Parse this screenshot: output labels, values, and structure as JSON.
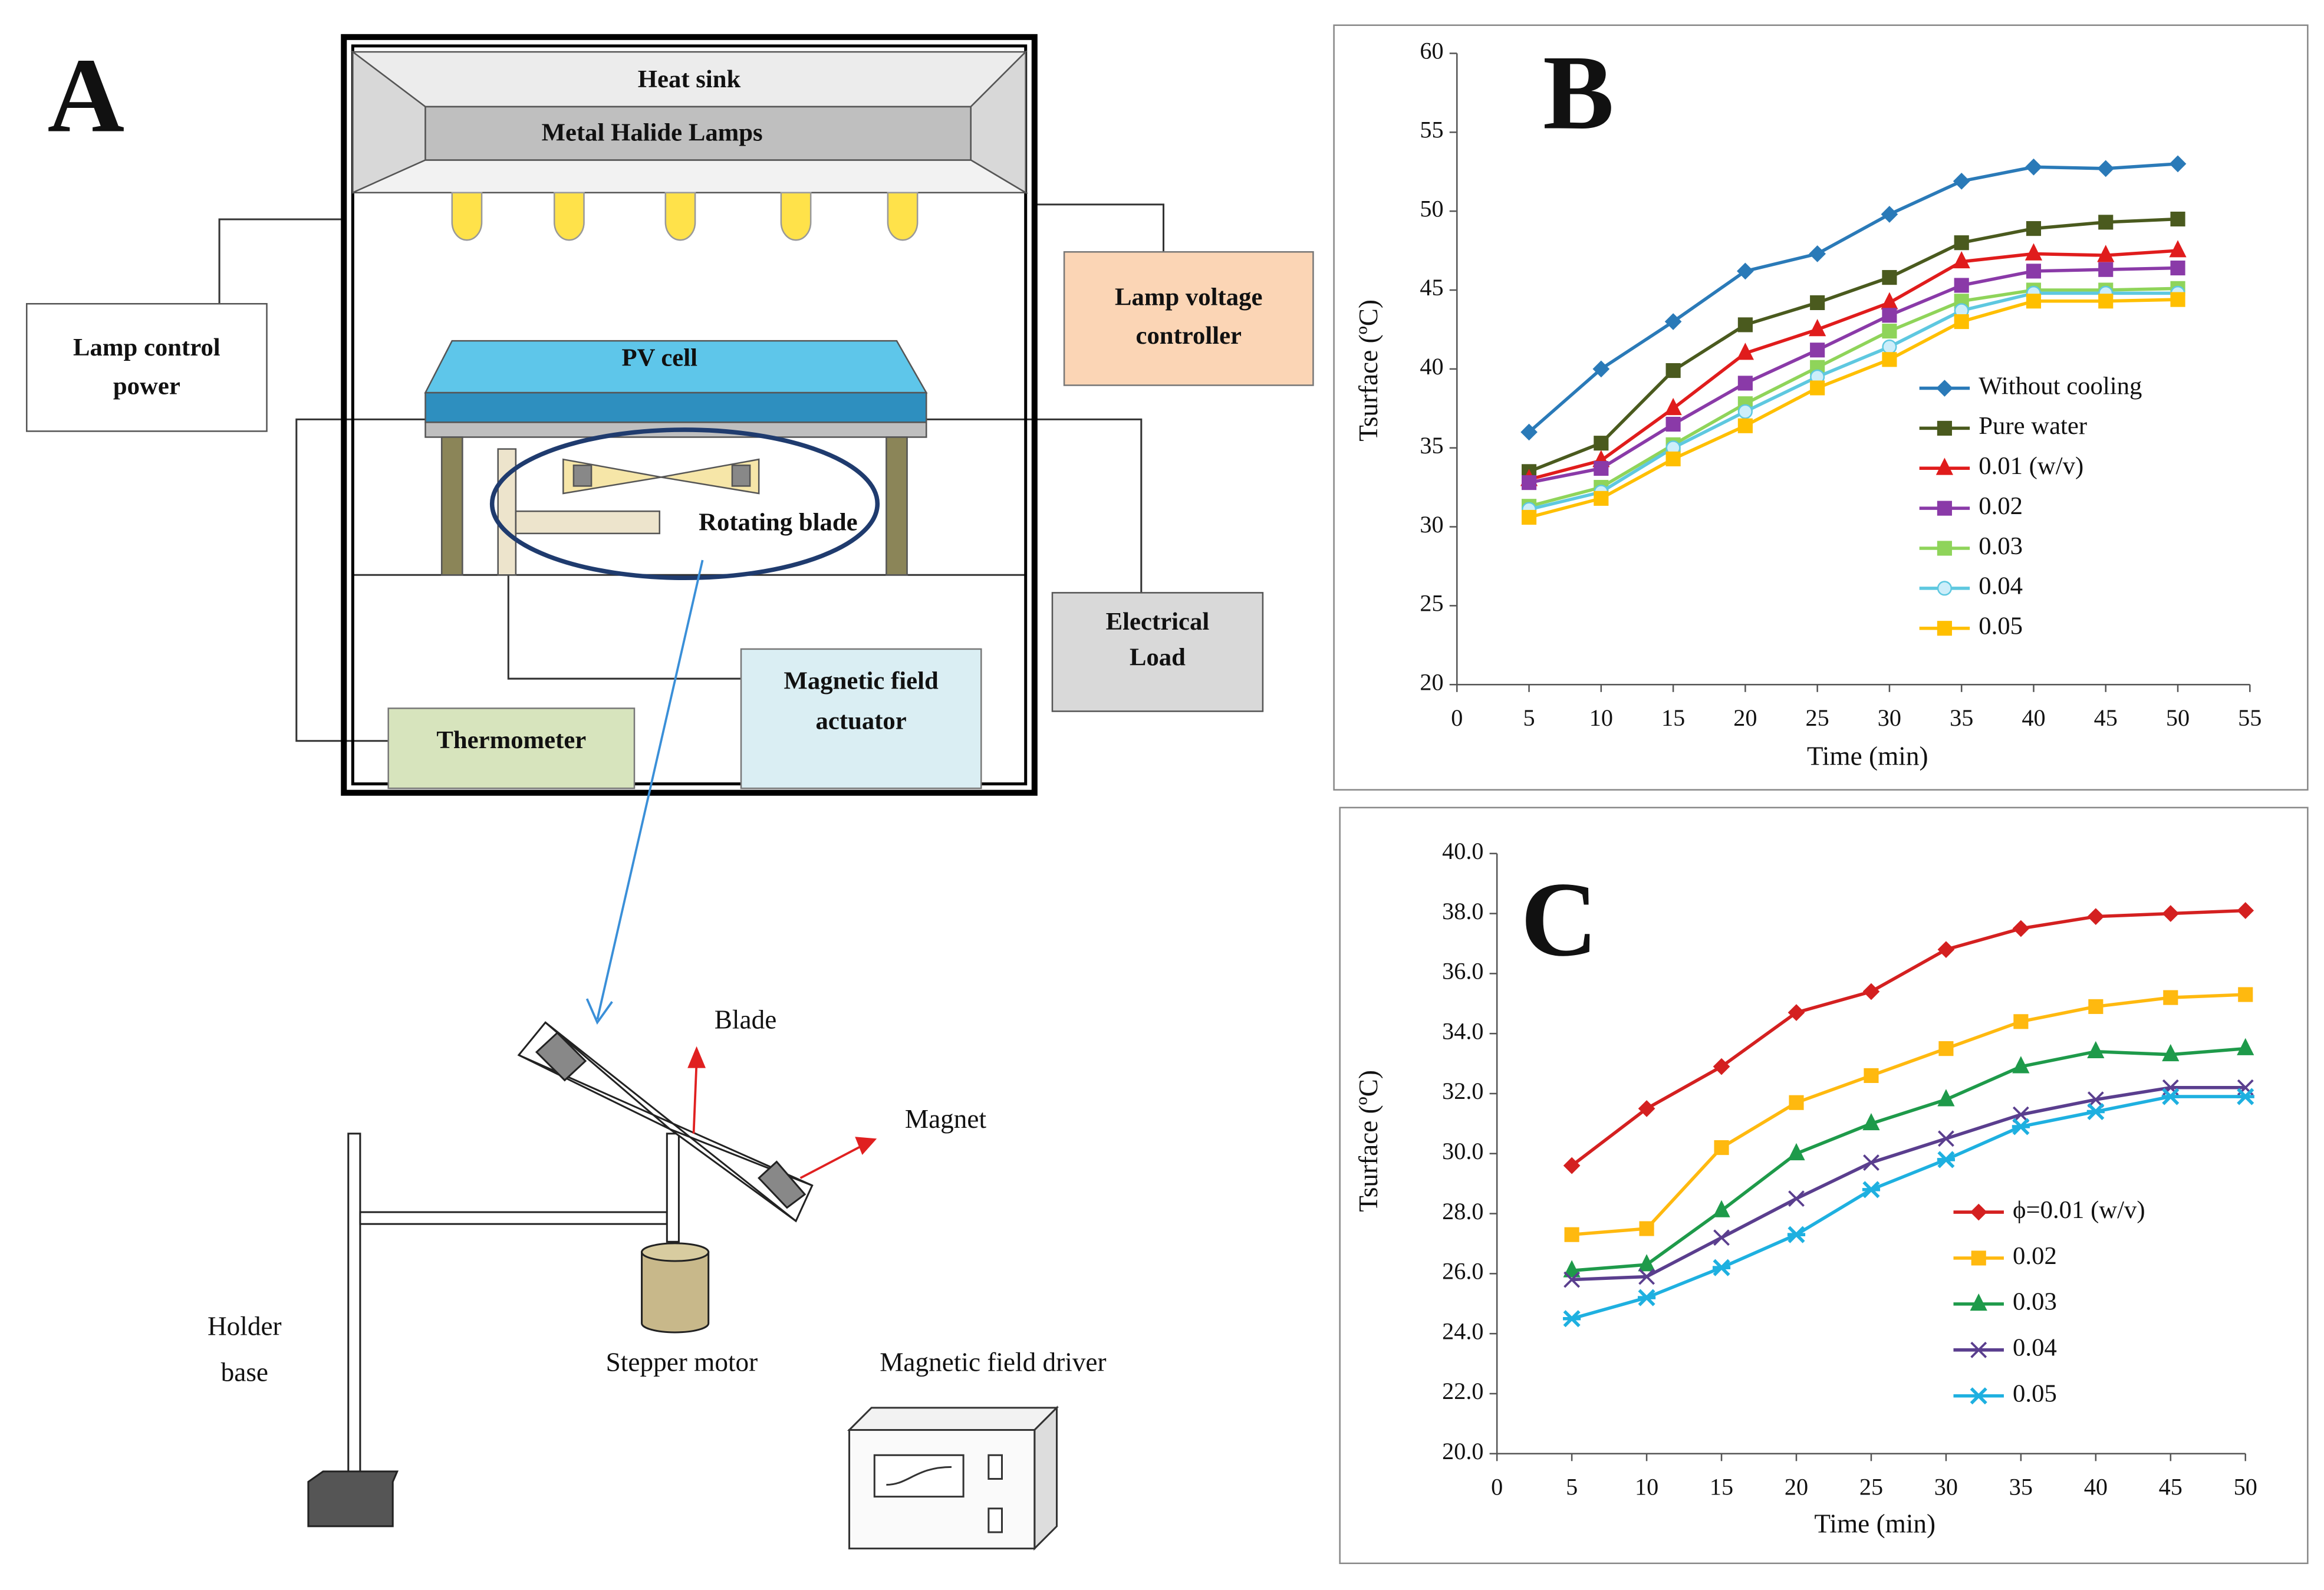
{
  "panel": "A",
  "diagram": {
    "heat_sink": "Heat sink",
    "lamps": "Metal Halide Lamps",
    "lamp_control_power": [
      "Lamp control",
      "power"
    ],
    "lamp_voltage_controller": [
      "Lamp voltage",
      "controller"
    ],
    "pv_cell": "PV cell",
    "rotating_blade": "Rotating blade",
    "electrical_load": [
      "Electrical",
      "Load"
    ],
    "magnetic_field_actuator": [
      "Magnetic field",
      "actuator"
    ],
    "thermometer": "Thermometer",
    "blade": "Blade",
    "magnet": "Magnet",
    "holder_base": [
      "Holder",
      "base"
    ],
    "stepper_motor": "Stepper motor",
    "magnetic_field_driver": "Magnetic field driver"
  },
  "chart_data": [
    {
      "type": "line",
      "label": "B",
      "xlabel": "Time (min)",
      "ylabel": "Tsurface (ºC)",
      "x": [
        5,
        10,
        15,
        20,
        25,
        30,
        35,
        40,
        45,
        50
      ],
      "xlim": [
        0,
        55
      ],
      "xticks": [
        0,
        5,
        10,
        15,
        20,
        25,
        30,
        35,
        40,
        45,
        50,
        55
      ],
      "ylim": [
        20,
        60
      ],
      "yticks": [
        20,
        25,
        30,
        35,
        40,
        45,
        50,
        55,
        60
      ],
      "series": [
        {
          "name": "Without cooling",
          "color": "#2a7ab8",
          "marker": "diamond",
          "values": [
            36,
            40,
            43,
            46.2,
            47.3,
            49.8,
            51.9,
            52.8,
            52.7,
            53
          ]
        },
        {
          "name": "Pure water",
          "color": "#4a5a1e",
          "marker": "square",
          "values": [
            33.5,
            35.3,
            39.9,
            42.8,
            44.2,
            45.8,
            48,
            48.9,
            49.3,
            49.5
          ]
        },
        {
          "name": "0.01 (w/v)",
          "color": "#e01c1c",
          "marker": "triangle",
          "values": [
            33,
            34.2,
            37.5,
            41,
            42.5,
            44.2,
            46.8,
            47.3,
            47.2,
            47.5
          ]
        },
        {
          "name": "0.02",
          "color": "#8a3aa8",
          "marker": "square",
          "values": [
            32.8,
            33.7,
            36.5,
            39.1,
            41.2,
            43.4,
            45.3,
            46.2,
            46.3,
            46.4
          ]
        },
        {
          "name": "0.03",
          "color": "#8fd45a",
          "marker": "square",
          "values": [
            31.3,
            32.5,
            35.2,
            37.8,
            40.1,
            42.4,
            44.3,
            45,
            45,
            45.1
          ]
        },
        {
          "name": "0.04",
          "color": "#5ec8e0",
          "marker": "circle",
          "values": [
            31.1,
            32.2,
            35,
            37.3,
            39.5,
            41.4,
            43.7,
            44.8,
            44.8,
            44.8
          ]
        },
        {
          "name": "0.05",
          "color": "#ffbf00",
          "marker": "square",
          "values": [
            30.6,
            31.8,
            34.3,
            36.4,
            38.8,
            40.6,
            43,
            44.3,
            44.3,
            44.4
          ]
        }
      ]
    },
    {
      "type": "line",
      "label": "C",
      "xlabel": "Time (min)",
      "ylabel": "Tsurface (ºC)",
      "x": [
        5,
        10,
        15,
        20,
        25,
        30,
        35,
        40,
        45,
        50
      ],
      "xlim": [
        0,
        50
      ],
      "xticks": [
        0,
        5,
        10,
        15,
        20,
        25,
        30,
        35,
        40,
        45,
        50
      ],
      "ylim": [
        20,
        40
      ],
      "yticks": [
        {
          "value": 20,
          "label": "20.0"
        },
        {
          "value": 22,
          "label": "22.0"
        },
        {
          "value": 24,
          "label": "24.0"
        },
        {
          "value": 26,
          "label": "26.0"
        },
        {
          "value": 28,
          "label": "28.0"
        },
        {
          "value": 30,
          "label": "30.0"
        },
        {
          "value": 32,
          "label": "32.0"
        },
        {
          "value": 34,
          "label": "34.0"
        },
        {
          "value": 36,
          "label": "36.0"
        },
        {
          "value": 38,
          "label": "38.0"
        },
        {
          "value": 40,
          "label": "40.0"
        }
      ],
      "series": [
        {
          "name": "ϕ=0.01 (w/v)",
          "color": "#d42020",
          "marker": "diamond",
          "values": [
            29.6,
            31.5,
            32.9,
            34.7,
            35.4,
            36.8,
            37.5,
            37.9,
            38,
            38.1
          ]
        },
        {
          "name": "0.02",
          "color": "#ffb90f",
          "marker": "square",
          "values": [
            27.3,
            27.5,
            30.2,
            31.7,
            32.6,
            33.5,
            34.4,
            34.9,
            35.2,
            35.3
          ]
        },
        {
          "name": "0.03",
          "color": "#1e9a4a",
          "marker": "triangle",
          "values": [
            26.1,
            26.3,
            28.1,
            30,
            31,
            31.8,
            32.9,
            33.4,
            33.3,
            33.5
          ]
        },
        {
          "name": "0.04",
          "color": "#5a3e8e",
          "marker": "x",
          "values": [
            25.8,
            25.9,
            27.2,
            28.5,
            29.7,
            30.5,
            31.3,
            31.8,
            32.2,
            32.2
          ]
        },
        {
          "name": "0.05",
          "color": "#1eb0e0",
          "marker": "star",
          "values": [
            24.5,
            25.2,
            26.2,
            27.3,
            28.8,
            29.8,
            30.9,
            31.4,
            31.9,
            31.9
          ]
        }
      ]
    }
  ]
}
